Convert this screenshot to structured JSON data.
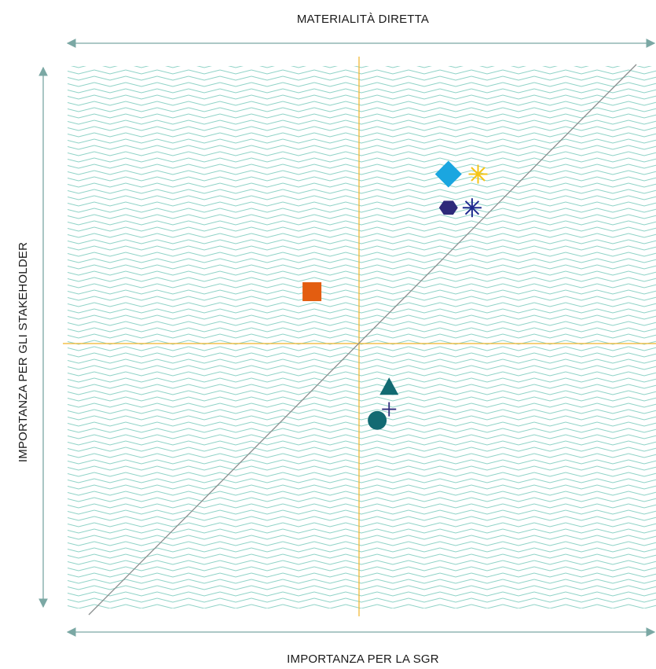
{
  "labels": {
    "top": "MATERIALITÀ DIRETTA",
    "bottom": "IMPORTANZA PER LA SGR",
    "left": "IMPORTANZA PER GLI STAKEHOLDER"
  },
  "colors": {
    "pattern": "#8fd3c7",
    "quadrant_lines": "#f0b429",
    "diagonal": "#8a8f8f",
    "arrows": "#7ba8a4"
  },
  "chart_data": {
    "type": "scatter",
    "title": "",
    "xlabel": "IMPORTANZA PER LA SGR",
    "ylabel": "IMPORTANZA PER GLI STAKEHOLDER",
    "xlim": [
      0,
      1
    ],
    "ylim": [
      0,
      1
    ],
    "grid": false,
    "quadrant_dividers": {
      "x": 0.5,
      "y": 0.5
    },
    "diagonal": true,
    "points": [
      {
        "shape": "diamond",
        "color": "#1aa6e0",
        "x": 0.65,
        "y": 0.79
      },
      {
        "shape": "asterisk",
        "color": "#f5c518",
        "x": 0.7,
        "y": 0.79
      },
      {
        "shape": "hexagon",
        "color": "#2e2a7a",
        "x": 0.65,
        "y": 0.73
      },
      {
        "shape": "asterisk",
        "color": "#1f2b8f",
        "x": 0.69,
        "y": 0.73
      },
      {
        "shape": "square",
        "color": "#e35d10",
        "x": 0.42,
        "y": 0.58
      },
      {
        "shape": "triangle",
        "color": "#126a72",
        "x": 0.55,
        "y": 0.41
      },
      {
        "shape": "plus",
        "color": "#2e2a7a",
        "x": 0.55,
        "y": 0.37
      },
      {
        "shape": "circle",
        "color": "#126a72",
        "x": 0.53,
        "y": 0.35
      }
    ]
  }
}
